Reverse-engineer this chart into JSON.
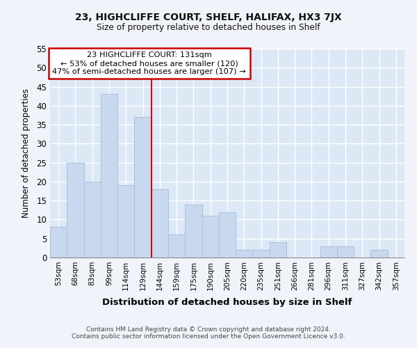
{
  "title": "23, HIGHCLIFFE COURT, SHELF, HALIFAX, HX3 7JX",
  "subtitle": "Size of property relative to detached houses in Shelf",
  "xlabel": "Distribution of detached houses by size in Shelf",
  "ylabel": "Number of detached properties",
  "categories": [
    "53sqm",
    "68sqm",
    "83sqm",
    "99sqm",
    "114sqm",
    "129sqm",
    "144sqm",
    "159sqm",
    "175sqm",
    "190sqm",
    "205sqm",
    "220sqm",
    "235sqm",
    "251sqm",
    "266sqm",
    "281sqm",
    "296sqm",
    "311sqm",
    "327sqm",
    "342sqm",
    "357sqm"
  ],
  "values": [
    8,
    25,
    20,
    43,
    19,
    37,
    18,
    6,
    14,
    11,
    12,
    2,
    2,
    4,
    0,
    0,
    3,
    3,
    0,
    2,
    0
  ],
  "bar_color": "#c8d8ee",
  "bar_edge_color": "#a8c0e0",
  "vline_color": "#cc0000",
  "annotation_line1": "23 HIGHCLIFFE COURT: 131sqm",
  "annotation_line2": "← 53% of detached houses are smaller (120)",
  "annotation_line3": "47% of semi-detached houses are larger (107) →",
  "ylim": [
    0,
    55
  ],
  "yticks": [
    0,
    5,
    10,
    15,
    20,
    25,
    30,
    35,
    40,
    45,
    50,
    55
  ],
  "footer1": "Contains HM Land Registry data © Crown copyright and database right 2024.",
  "footer2": "Contains public sector information licensed under the Open Government Licence v3.0.",
  "bg_color": "#f0f4fa",
  "plot_bg_color": "#dce8f5",
  "grid_color": "#ffffff",
  "vline_bar_index": 5
}
